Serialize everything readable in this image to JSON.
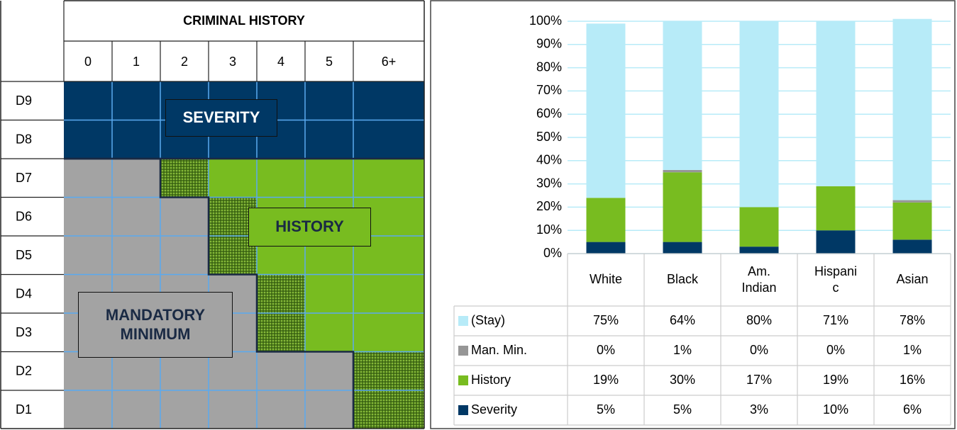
{
  "grid": {
    "title": "CRIMINAL HISTORY",
    "columns": [
      "0",
      "1",
      "2",
      "3",
      "4",
      "5",
      "6+"
    ],
    "rows": [
      "D9",
      "D8",
      "D7",
      "D6",
      "D5",
      "D4",
      "D3",
      "D2",
      "D1"
    ],
    "labels": [
      "SEVERITY",
      "HISTORY",
      "MANDATORY MINIMUM"
    ]
  },
  "chart_data": {
    "type": "stacked_bar",
    "categories": [
      "White",
      "Black",
      "Am. Indian",
      "Hispanic",
      "Asian"
    ],
    "series": [
      {
        "name": "(Stay)",
        "color": "#b7ebf8",
        "values": [
          75,
          64,
          80,
          71,
          78
        ],
        "value_labels": [
          "75%",
          "64%",
          "80%",
          "71%",
          "78%"
        ]
      },
      {
        "name": "Man. Min.",
        "color": "#969696",
        "values": [
          0,
          1,
          0,
          0,
          1
        ],
        "value_labels": [
          "0%",
          "1%",
          "0%",
          "0%",
          "1%"
        ]
      },
      {
        "name": "History",
        "color": "#78bc20",
        "values": [
          19,
          30,
          17,
          19,
          16
        ],
        "value_labels": [
          "19%",
          "30%",
          "17%",
          "19%",
          "16%"
        ]
      },
      {
        "name": "Severity",
        "color": "#003865",
        "values": [
          5,
          5,
          3,
          10,
          6
        ],
        "value_labels": [
          "5%",
          "5%",
          "3%",
          "10%",
          "6%"
        ]
      }
    ],
    "ylim": [
      0,
      100
    ],
    "yticks": [
      {
        "value": 0,
        "label": "0%"
      },
      {
        "value": 10,
        "label": "10%"
      },
      {
        "value": 20,
        "label": "20%"
      },
      {
        "value": 30,
        "label": "30%"
      },
      {
        "value": 40,
        "label": "40%"
      },
      {
        "value": 50,
        "label": "50%"
      },
      {
        "value": 60,
        "label": "60%"
      },
      {
        "value": 70,
        "label": "70%"
      },
      {
        "value": 80,
        "label": "80%"
      },
      {
        "value": 90,
        "label": "90%"
      },
      {
        "value": 100,
        "label": "100%"
      }
    ],
    "grid": true
  }
}
